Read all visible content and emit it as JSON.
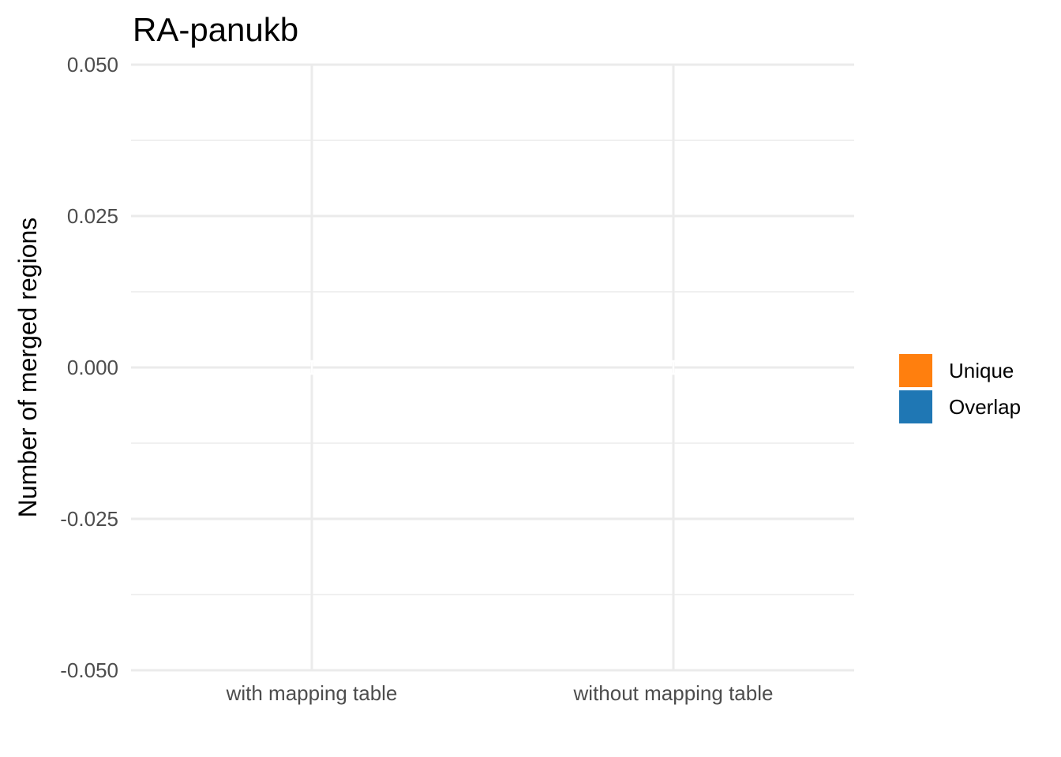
{
  "chart_data": {
    "type": "bar",
    "title": "RA-panukb",
    "xlabel": "",
    "ylabel": "Number of merged regions",
    "categories": [
      "with mapping table",
      "without mapping table"
    ],
    "series": [
      {
        "name": "Unique",
        "color": "#ff7f0e",
        "values": [
          0,
          0
        ]
      },
      {
        "name": "Overlap",
        "color": "#1f77b4",
        "values": [
          0,
          0
        ]
      }
    ],
    "stacked": true,
    "ylim": [
      -0.05,
      0.05
    ],
    "y_ticks": [
      -0.05,
      -0.025,
      0,
      0.025,
      0.05
    ],
    "y_tick_labels": [
      "-0.050",
      "-0.025",
      "0.000",
      "0.025",
      "0.050"
    ],
    "grid": true,
    "legend": {
      "position": "right",
      "items": [
        "Unique",
        "Overlap"
      ]
    }
  }
}
